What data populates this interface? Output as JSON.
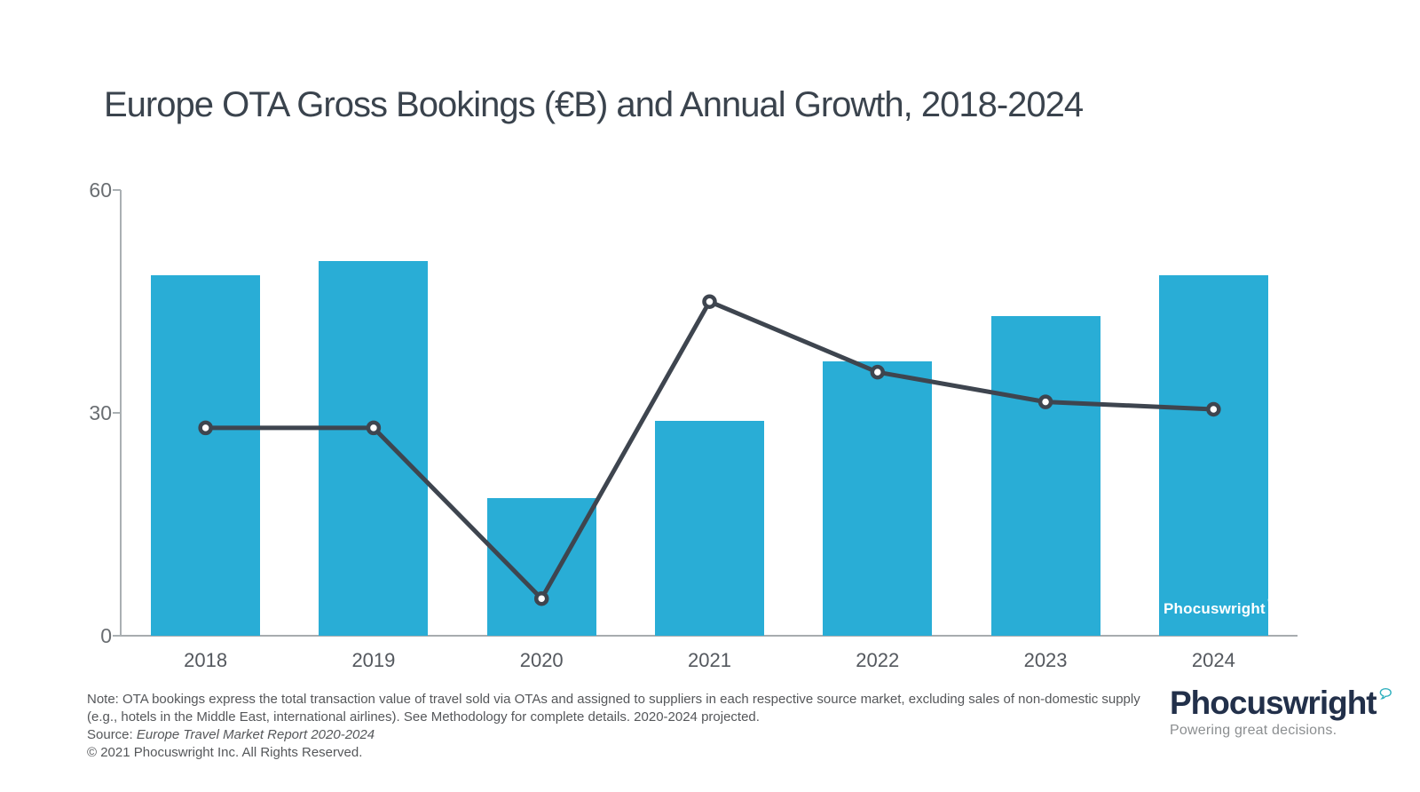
{
  "title": "Europe OTA Gross Bookings (€B) and Annual Growth, 2018-2024",
  "chart_data": {
    "type": "bar",
    "combo": "bar-with-line-overlay",
    "title": "Europe OTA Gross Bookings (€B) and Annual Growth, 2018-2024",
    "categories": [
      "2018",
      "2019",
      "2020",
      "2021",
      "2022",
      "2023",
      "2024"
    ],
    "series": [
      {
        "name": "OTA Gross Bookings (€B)",
        "type": "bar",
        "color": "#29add6",
        "values": [
          48.5,
          50.5,
          18.5,
          29,
          37,
          43,
          48.5
        ]
      },
      {
        "name": "Annual Growth",
        "type": "line",
        "color": "#3e454f",
        "marker": "open-circle",
        "axis": "hidden secondary axis; values expressed in left-axis units as drawn",
        "values": [
          28,
          28,
          5,
          45,
          35.5,
          31.5,
          30.5
        ]
      }
    ],
    "xlabel": "",
    "ylabel": "",
    "ylim": [
      0,
      60
    ],
    "yticks": [
      0,
      30,
      60
    ],
    "grid": false,
    "legend": "none"
  },
  "footnotes": {
    "note_line1": "Note: OTA bookings express the total transaction value of travel sold via OTAs and assigned to suppliers in each respective source market, excluding sales of non-domestic supply",
    "note_line2": "(e.g., hotels in the Middle East, international airlines). See Methodology for complete details. 2020-2024 projected.",
    "source_prefix": "Source: ",
    "source_report": "Europe Travel Market Report 2020-2024",
    "copyright": "© 2021  Phocuswright Inc. All Rights Reserved."
  },
  "branding": {
    "watermark_text": "Phocuswright",
    "logo_text": "Phocuswright",
    "logo_tagline": "Powering great decisions.",
    "logo_navy": "#22304a",
    "logo_teal": "#2fb0be",
    "bubble_icon": "speech-bubble-icon"
  }
}
